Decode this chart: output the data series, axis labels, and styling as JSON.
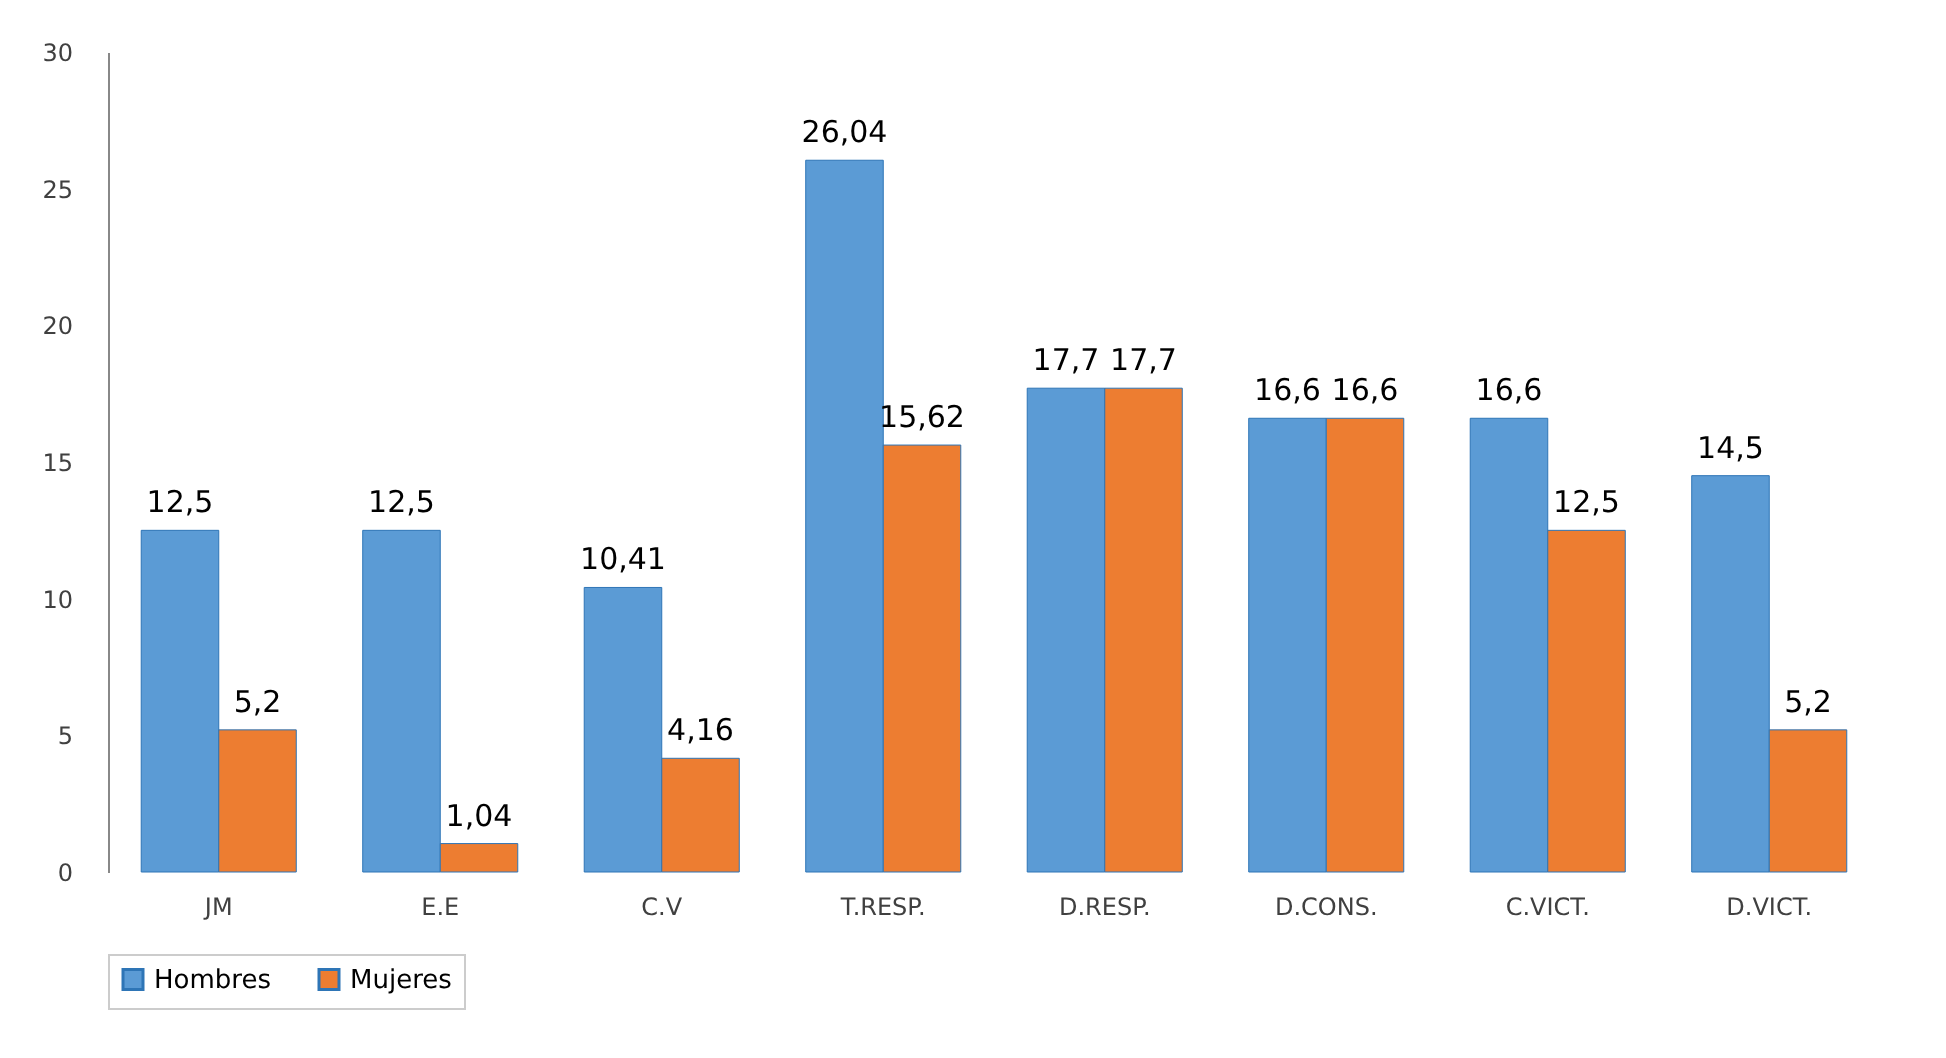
{
  "chart_data": {
    "type": "bar",
    "categories": [
      "JM",
      "E.E",
      "C.V",
      "T.RESP.",
      "D.RESP.",
      "D.CONS.",
      "C.VICT.",
      "D.VICT."
    ],
    "series": [
      {
        "name": "Hombres",
        "color": "#5b9bd5",
        "values": [
          12.5,
          12.5,
          10.41,
          26.04,
          17.7,
          16.6,
          16.6,
          14.5
        ],
        "value_labels": [
          "12,5",
          "12,5",
          "10,41",
          "26,04",
          "17,7",
          "16,6",
          "16,6",
          "14,5"
        ]
      },
      {
        "name": "Mujeres",
        "color": "#ed7d31",
        "values": [
          5.2,
          1.04,
          4.16,
          15.62,
          17.7,
          16.6,
          12.5,
          5.2
        ],
        "value_labels": [
          "5,2",
          "1,04",
          "4,16",
          "15,62",
          "17,7",
          "16,6",
          "12,5",
          "5,2"
        ]
      }
    ],
    "ylim": [
      0,
      30
    ],
    "yticks": [
      0,
      5,
      10,
      15,
      20,
      25,
      30
    ],
    "grid": false,
    "legend": "bottom"
  }
}
